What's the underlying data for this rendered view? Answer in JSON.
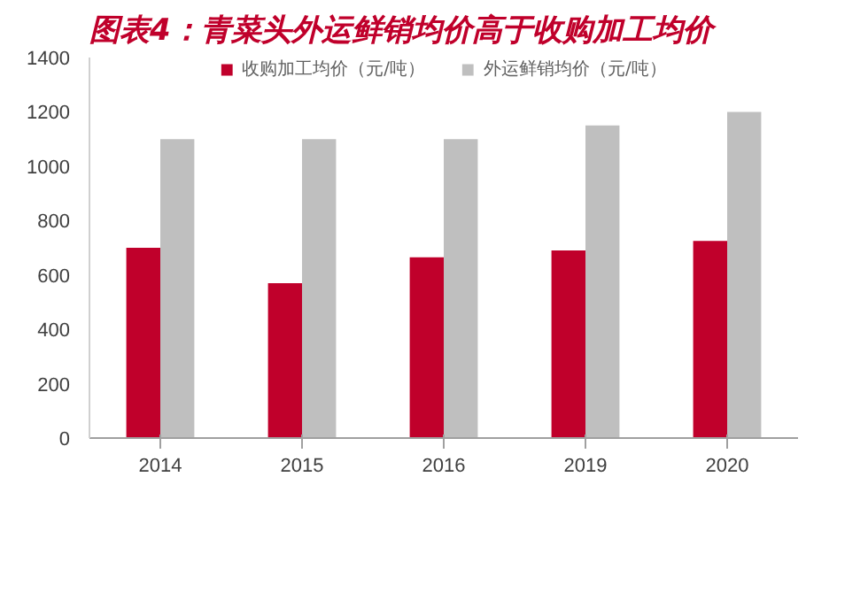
{
  "chart_data": {
    "type": "bar",
    "title": "图表4：青菜头外运鲜销均价高于收购加工均价",
    "categories": [
      "2014",
      "2015",
      "2016",
      "2019",
      "2020"
    ],
    "series": [
      {
        "name": "收购加工均价（元/吨）",
        "color": "#c0002b",
        "values": [
          700,
          570,
          665,
          690,
          725
        ]
      },
      {
        "name": "外运鲜销均价（元/吨）",
        "color": "#bfbfbf",
        "values": [
          1100,
          1100,
          1100,
          1150,
          1200
        ]
      }
    ],
    "ylim": [
      0,
      1400
    ],
    "yticks": [
      0,
      200,
      400,
      600,
      800,
      1000,
      1200,
      1400
    ],
    "grid": false,
    "legend": "top"
  }
}
